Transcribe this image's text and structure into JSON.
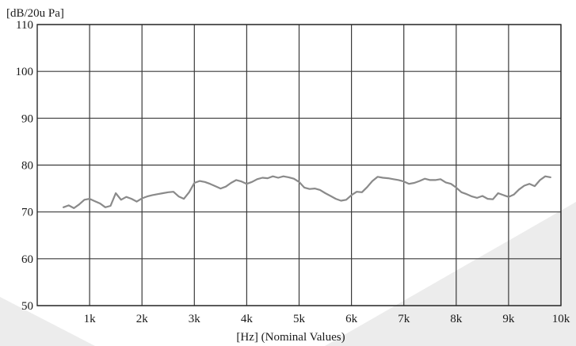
{
  "chart_data": {
    "type": "line",
    "ylabel": "[dB/20u Pa]",
    "xlabel": "[Hz] (Nominal Values)",
    "xlim": [
      0,
      10000
    ],
    "ylim": [
      50,
      110
    ],
    "grid": true,
    "legend": "none",
    "x_ticks": [
      {
        "value": 1000,
        "label": "1k"
      },
      {
        "value": 2000,
        "label": "2k"
      },
      {
        "value": 3000,
        "label": "3k"
      },
      {
        "value": 4000,
        "label": "4k"
      },
      {
        "value": 5000,
        "label": "5k"
      },
      {
        "value": 6000,
        "label": "6k"
      },
      {
        "value": 7000,
        "label": "7k"
      },
      {
        "value": 8000,
        "label": "8k"
      },
      {
        "value": 9000,
        "label": "9k"
      },
      {
        "value": 10000,
        "label": "10k"
      }
    ],
    "y_ticks": [
      {
        "value": 50,
        "label": "50"
      },
      {
        "value": 60,
        "label": "60"
      },
      {
        "value": 70,
        "label": "70"
      },
      {
        "value": 80,
        "label": "80"
      },
      {
        "value": 90,
        "label": "90"
      },
      {
        "value": 100,
        "label": "100"
      },
      {
        "value": 110,
        "label": "110"
      }
    ],
    "series": [
      {
        "color": "#8a8a8a",
        "x": [
          500,
          600,
          700,
          800,
          900,
          1000,
          1100,
          1200,
          1300,
          1400,
          1500,
          1600,
          1700,
          1800,
          1900,
          2000,
          2100,
          2200,
          2300,
          2400,
          2500,
          2600,
          2700,
          2800,
          2900,
          3000,
          3100,
          3200,
          3300,
          3400,
          3500,
          3600,
          3700,
          3800,
          3900,
          4000,
          4100,
          4200,
          4300,
          4400,
          4500,
          4600,
          4700,
          4800,
          4900,
          5000,
          5100,
          5200,
          5300,
          5400,
          5500,
          5600,
          5700,
          5800,
          5900,
          6000,
          6100,
          6200,
          6300,
          6400,
          6500,
          6600,
          6700,
          6800,
          6900,
          7000,
          7100,
          7200,
          7300,
          7400,
          7500,
          7600,
          7700,
          7800,
          7900,
          8000,
          8100,
          8200,
          8300,
          8400,
          8500,
          8600,
          8700,
          8800,
          8900,
          9000,
          9100,
          9200,
          9300,
          9400,
          9500,
          9600,
          9700,
          9800
        ],
        "y": [
          71.0,
          71.4,
          70.8,
          71.6,
          72.6,
          72.8,
          72.3,
          71.8,
          71.0,
          71.3,
          74.0,
          72.6,
          73.2,
          72.8,
          72.2,
          72.9,
          73.3,
          73.6,
          73.8,
          74.0,
          74.2,
          74.3,
          73.3,
          72.8,
          74.2,
          76.2,
          76.6,
          76.4,
          76.0,
          75.5,
          75.0,
          75.4,
          76.2,
          76.8,
          76.5,
          76.0,
          76.4,
          77.0,
          77.3,
          77.2,
          77.6,
          77.3,
          77.6,
          77.4,
          77.1,
          76.4,
          75.2,
          74.9,
          75.0,
          74.7,
          74.0,
          73.4,
          72.8,
          72.4,
          72.6,
          73.6,
          74.3,
          74.2,
          75.3,
          76.6,
          77.5,
          77.3,
          77.2,
          77.0,
          76.8,
          76.5,
          76.0,
          76.2,
          76.6,
          77.1,
          76.8,
          76.8,
          77.0,
          76.3,
          76.0,
          75.2,
          74.2,
          73.8,
          73.3,
          73.0,
          73.4,
          72.8,
          72.7,
          74.0,
          73.6,
          73.2,
          73.7,
          74.8,
          75.6,
          76.0,
          75.5,
          76.8,
          77.6,
          77.4
        ]
      }
    ]
  }
}
